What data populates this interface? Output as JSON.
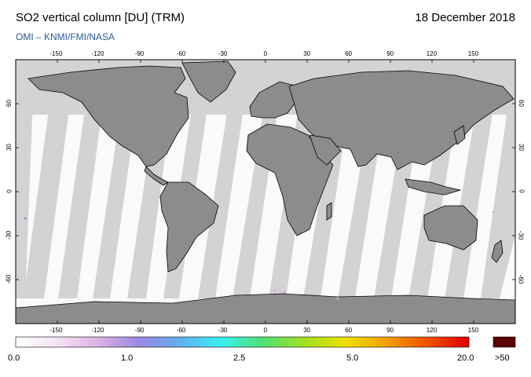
{
  "header": {
    "title": "SO2 vertical column [DU] (TRM)",
    "date": "18 December 2018",
    "credit": "OMI  –  KNMI/FMI/NASA"
  },
  "map": {
    "lon_ticks": [
      "-150",
      "-120",
      "-90",
      "-60",
      "-30",
      "0",
      "30",
      "60",
      "90",
      "120",
      "150"
    ],
    "lat_ticks": [
      "60",
      "30",
      "0",
      "-30",
      "-60"
    ],
    "colors": {
      "land": "#8c8c8c",
      "no_data": "#d3d3d3",
      "coast": "#000000",
      "ocean_data": "#fafafa"
    }
  },
  "colorbar": {
    "labels": [
      "0.0",
      "1.0",
      "2.5",
      "5.0",
      "20.0"
    ],
    "overflow_label": ">50",
    "overflow_color": "#5a0000",
    "gradient": [
      "#ffffff",
      "#f6e4f6",
      "#ddb0e6",
      "#9a88e0",
      "#5fb0f0",
      "#38f0f0",
      "#50e070",
      "#a0e020",
      "#f0e000",
      "#f0a000",
      "#f05000",
      "#e00000"
    ]
  }
}
